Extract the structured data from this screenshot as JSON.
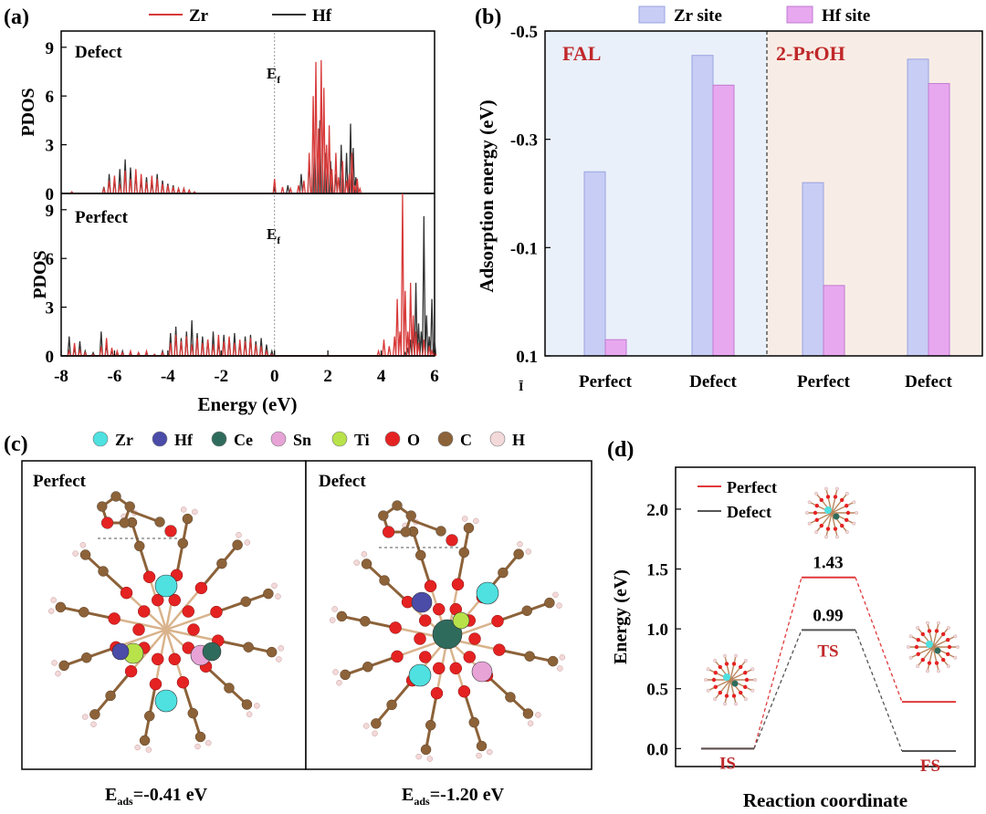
{
  "colors": {
    "zr": "#d83a3a",
    "hf": "#333333",
    "zr_site": "#c8cdf5",
    "hf_site": "#e8a8f0",
    "fal_bg": "#e9f0fa",
    "prooh_bg": "#f8ede6",
    "perfect": "#e0393a",
    "defect": "#555555",
    "label_red": "#c0282a"
  },
  "panels": {
    "a": "(a)",
    "b": "(b)",
    "c": "(c)",
    "d": "(d)"
  },
  "chart_data": [
    {
      "id": "a",
      "type": "line",
      "legend": [
        "Zr",
        "Hf"
      ],
      "xlabel": "Energy (eV)",
      "ylabel": "PDOS",
      "xlim": [
        -8,
        6
      ],
      "xticks": [
        "-8",
        "-6",
        "-4",
        "-2",
        "0",
        "2",
        "4",
        "6"
      ],
      "subplots": [
        {
          "name": "Defect",
          "fermi_label": "E",
          "fermi_sub": "f",
          "ylim": [
            0,
            10
          ],
          "yticks": [
            "0",
            "3",
            "6",
            "9"
          ],
          "series": [
            {
              "name": "Zr",
              "x": [
                -7.6,
                -6.4,
                -6.2,
                -6.0,
                -5.8,
                -5.6,
                -5.4,
                -5.2,
                -5.0,
                -4.8,
                -4.6,
                -4.4,
                -4.2,
                -4.0,
                -3.8,
                -3.6,
                -3.4,
                -3.2,
                -3.0,
                -0.05,
                0.0,
                0.3,
                0.6,
                0.9,
                1.1,
                1.3,
                1.45,
                1.55,
                1.65,
                1.75,
                1.85,
                1.95,
                2.05,
                2.15,
                2.3,
                2.4,
                2.55,
                2.7,
                2.8,
                2.9,
                3.0,
                3.1,
                3.2,
                3.3
              ],
              "y": [
                0.1,
                0.3,
                0.8,
                1.1,
                0.6,
                1.4,
                0.9,
                1.5,
                1.2,
                0.7,
                1.1,
                0.9,
                0.6,
                0.5,
                0.4,
                0.3,
                0.3,
                0.2,
                0.1,
                0.0,
                0.9,
                0.4,
                0.3,
                0.5,
                0.8,
                2.5,
                6.0,
                8.1,
                4.0,
                8.2,
                6.5,
                3.0,
                4.2,
                1.5,
                2.5,
                1.0,
                2.0,
                0.8,
                1.2,
                2.5,
                0.5,
                0.9,
                0.3,
                0.0
              ]
            },
            {
              "name": "Hf",
              "x": [
                -7.6,
                -6.4,
                -6.2,
                -6.0,
                -5.8,
                -5.6,
                -5.4,
                -5.2,
                -5.0,
                -4.8,
                -4.6,
                -4.4,
                -4.2,
                -4.0,
                -3.8,
                -3.6,
                -3.4,
                -3.2,
                -3.0,
                0.0,
                0.5,
                1.0,
                1.3,
                1.5,
                1.7,
                1.9,
                2.1,
                2.3,
                2.5,
                2.7,
                2.85,
                2.95,
                3.05,
                3.2
              ],
              "y": [
                0.1,
                0.4,
                1.2,
                0.9,
                1.5,
                2.1,
                1.6,
                1.2,
                0.8,
                1.0,
                0.7,
                1.2,
                0.8,
                0.6,
                0.5,
                0.3,
                0.3,
                0.2,
                0.1,
                0.3,
                0.5,
                1.2,
                2.2,
                3.2,
                4.5,
                2.5,
                2.0,
                1.2,
                3.0,
                2.5,
                4.3,
                2.8,
                1.0,
                0.0
              ]
            }
          ]
        },
        {
          "name": "Perfect",
          "fermi_label": "E",
          "fermi_sub": "f",
          "ylim": [
            0,
            10
          ],
          "yticks": [
            "0",
            "3",
            "6",
            "9"
          ],
          "series": [
            {
              "name": "Zr",
              "x": [
                -7.7,
                -7.5,
                -7.3,
                -7.1,
                -6.8,
                -6.5,
                -6.3,
                -6.1,
                -5.9,
                -5.7,
                -5.4,
                -5.1,
                -4.8,
                -4.5,
                -4.2,
                -3.9,
                -3.7,
                -3.5,
                -3.3,
                -3.1,
                -2.9,
                -2.7,
                -2.5,
                -2.3,
                -2.1,
                -1.9,
                -1.7,
                -1.5,
                -1.3,
                -1.1,
                -0.9,
                -0.7,
                -0.5,
                -0.3,
                -0.1,
                3.9,
                4.1,
                4.3,
                4.5,
                4.6,
                4.7,
                4.8,
                4.9,
                5.0,
                5.1,
                5.2,
                5.3,
                5.4,
                5.6,
                5.8,
                5.9,
                6.0
              ],
              "y": [
                0.3,
                0.8,
                0.4,
                0.2,
                0.1,
                0.6,
                1.1,
                0.5,
                0.3,
                0.2,
                0.3,
                0.2,
                0.3,
                0.1,
                0.2,
                0.8,
                1.3,
                0.9,
                1.2,
                0.7,
                1.1,
                0.8,
                1.0,
                0.7,
                1.3,
                0.9,
                1.2,
                0.8,
                1.0,
                0.9,
                1.1,
                0.7,
                0.6,
                0.3,
                0.1,
                0.3,
                1.0,
                0.6,
                1.2,
                3.5,
                1.5,
                10.0,
                4.0,
                1.5,
                4.5,
                2.5,
                1.5,
                0.8,
                1.0,
                0.6,
                0.3,
                0.2
              ]
            },
            {
              "name": "Hf",
              "x": [
                -7.7,
                -7.5,
                -7.3,
                -7.1,
                -6.8,
                -6.5,
                -6.3,
                -6.1,
                -5.9,
                -5.7,
                -5.4,
                -5.1,
                -4.8,
                -4.5,
                -4.2,
                -3.9,
                -3.7,
                -3.5,
                -3.3,
                -3.1,
                -2.9,
                -2.7,
                -2.5,
                -2.3,
                -2.1,
                -1.9,
                -1.7,
                -1.5,
                -1.3,
                -1.1,
                -0.9,
                -0.7,
                -0.5,
                -0.3,
                -0.1,
                4.9,
                5.0,
                5.1,
                5.2,
                5.3,
                5.4,
                5.5,
                5.6,
                5.7,
                5.8,
                5.9,
                6.0
              ],
              "y": [
                1.2,
                0.5,
                0.9,
                0.3,
                0.2,
                1.5,
                0.7,
                0.3,
                0.2,
                0.3,
                0.2,
                0.2,
                0.2,
                0.1,
                0.3,
                1.4,
                1.8,
                1.1,
                1.5,
                2.2,
                1.4,
                1.2,
                1.0,
                1.5,
                0.9,
                1.3,
                1.1,
                1.4,
                0.8,
                1.2,
                1.3,
                0.9,
                1.1,
                0.7,
                0.3,
                0.2,
                0.5,
                1.0,
                1.5,
                4.5,
                2.0,
                1.5,
                8.6,
                2.5,
                1.2,
                3.5,
                1.0
              ]
            }
          ]
        }
      ]
    },
    {
      "id": "b",
      "type": "bar",
      "title": "",
      "legend": [
        "Zr site",
        "Hf site"
      ],
      "ylabel": "Adsorption energy (eV)",
      "ylim": [
        0.1,
        -0.5
      ],
      "yticks": [
        "-0.5",
        "-0.3",
        "-0.1",
        "0.1"
      ],
      "small_tick_label": "Ī",
      "groups": [
        {
          "label": "FAL",
          "categories": [
            "Perfect",
            "Defect"
          ],
          "series": [
            {
              "name": "Zr site",
              "values": [
                -0.24,
                -0.455
              ]
            },
            {
              "name": "Hf site",
              "values": [
                0.07,
                -0.4
              ]
            }
          ]
        },
        {
          "label": "2-PrOH",
          "categories": [
            "Perfect",
            "Defect"
          ],
          "series": [
            {
              "name": "Zr site",
              "values": [
                -0.22,
                -0.448
              ]
            },
            {
              "name": "Hf site",
              "values": [
                -0.03,
                -0.403
              ]
            }
          ]
        }
      ]
    },
    {
      "id": "d",
      "type": "line",
      "legend": [
        "Perfect",
        "Defect"
      ],
      "xlabel": "Reaction coordinate",
      "ylabel": "Energy (eV)",
      "ylim": [
        -0.15,
        2.35
      ],
      "yticks": [
        "0.0",
        "0.5",
        "1.0",
        "1.5",
        "2.0"
      ],
      "states": [
        "IS",
        "TS",
        "FS"
      ],
      "series": [
        {
          "name": "Perfect",
          "values": [
            0.0,
            1.43,
            0.39
          ]
        },
        {
          "name": "Defect",
          "values": [
            0.0,
            0.99,
            -0.02
          ]
        }
      ],
      "annotations": [
        "1.43",
        "0.99"
      ]
    }
  ],
  "panel_c": {
    "legend": [
      {
        "label": "Zr",
        "color": "#4fe0e0"
      },
      {
        "label": "Hf",
        "color": "#4b4ba8"
      },
      {
        "label": "Ce",
        "color": "#2f6b5c"
      },
      {
        "label": "Sn",
        "color": "#e7a3d6"
      },
      {
        "label": "Ti",
        "color": "#b8e24a"
      },
      {
        "label": "O",
        "color": "#e52222"
      },
      {
        "label": "C",
        "color": "#8c6239"
      },
      {
        "label": "H",
        "color": "#f3d9d9"
      }
    ],
    "structures": [
      {
        "title": "Perfect",
        "energy_label": "E",
        "energy_sub": "ads",
        "energy_value": "=-0.41 eV"
      },
      {
        "title": "Defect",
        "energy_label": "E",
        "energy_sub": "ads",
        "energy_value": "=-1.20 eV"
      }
    ]
  }
}
